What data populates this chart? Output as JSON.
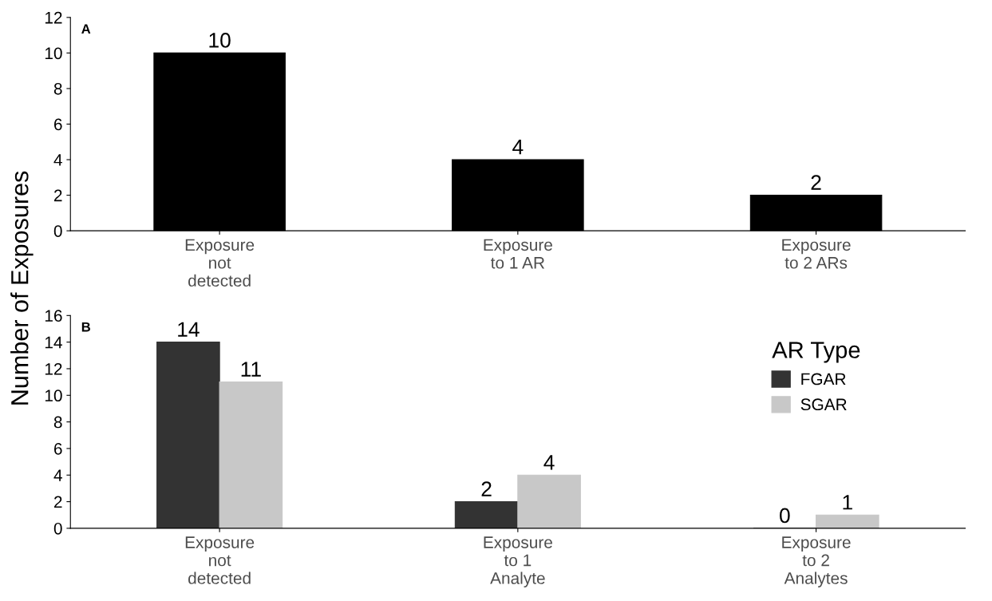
{
  "chart_data": [
    {
      "type": "bar",
      "ylabel": "Number of Exposures",
      "annotations": [
        "A"
      ],
      "categories": [
        "Exposure\nnot\ndetected",
        "Exposure\nto 1 AR",
        "Exposure\nto 2 ARs"
      ],
      "values": [
        10,
        4,
        2
      ],
      "color": "#000000",
      "ylim": [
        0,
        12
      ],
      "yticks": [
        0,
        2,
        4,
        6,
        8,
        10,
        12
      ],
      "grid": false,
      "data_labels": true
    },
    {
      "type": "bar",
      "annotations": [
        "B"
      ],
      "legend_title": "AR Type",
      "legend": "top right",
      "categories": [
        "Exposure\nnot\ndetected",
        "Exposure\nto 1\nAnalyte",
        "Exposure\nto 2\nAnalytes"
      ],
      "series": [
        {
          "name": "FGAR",
          "color": "#333333",
          "values": [
            14,
            2,
            0
          ]
        },
        {
          "name": "SGAR",
          "color": "#c8c8c8",
          "values": [
            11,
            4,
            1
          ]
        }
      ],
      "ylim": [
        0,
        16
      ],
      "yticks": [
        0,
        2,
        4,
        6,
        8,
        10,
        12,
        14,
        16
      ],
      "grid": false,
      "data_labels": true
    }
  ]
}
